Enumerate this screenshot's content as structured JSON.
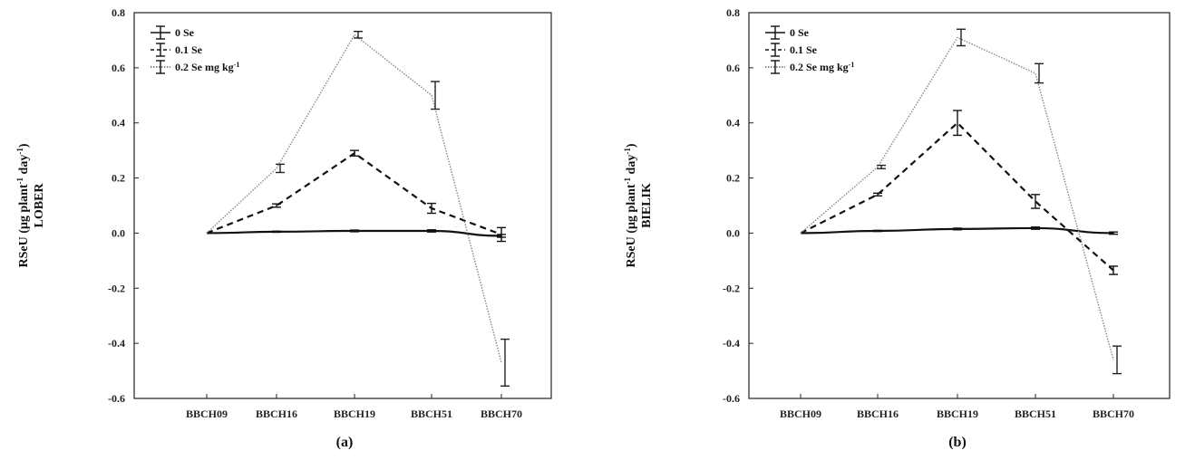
{
  "chart_data": [
    {
      "type": "line",
      "caption": "(a)",
      "ylabel_main": "RSeU (µg plant",
      "ylabel_sup1": "-1",
      "ylabel_mid": " day",
      "ylabel_sup2": "-1",
      "ylabel_end": ")",
      "ylabel_line2": "LOBER",
      "categories": [
        "BBCH09",
        "BBCH16",
        "BBCH19",
        "BBCH51",
        "BBCH70"
      ],
      "ylim": [
        -0.6,
        0.8
      ],
      "yticks": [
        "-0.6",
        "-0.4",
        "-0.2",
        "0.0",
        "0.2",
        "0.4",
        "0.6",
        "0.8"
      ],
      "legend": {
        "placement": "top-left",
        "entries": [
          "0 Se",
          "0.1 Se",
          "0.2 Se mg kg"
        ],
        "last_sup": "-1"
      },
      "series": [
        {
          "name": "0 Se",
          "style": "solid",
          "values": [
            0.0,
            0.005,
            0.008,
            0.008,
            -0.01
          ],
          "errors": [
            0.0,
            0.002,
            0.003,
            0.004,
            0.005
          ]
        },
        {
          "name": "0.1 Se",
          "style": "dashed",
          "values": [
            0.0,
            0.1,
            0.29,
            0.09,
            -0.005
          ],
          "errors": [
            0.0,
            0.006,
            0.01,
            0.018,
            0.025
          ]
        },
        {
          "name": "0.2 Se mg kg-1",
          "style": "dotted",
          "values": [
            0.0,
            0.235,
            0.72,
            0.5,
            -0.47
          ],
          "errors": [
            0.0,
            0.015,
            0.012,
            0.05,
            0.085
          ]
        }
      ]
    },
    {
      "type": "line",
      "caption": "(b)",
      "ylabel_main": "RSeU (µg plant",
      "ylabel_sup1": "-1",
      "ylabel_mid": " day",
      "ylabel_sup2": "-1",
      "ylabel_end": ")",
      "ylabel_line2": "BIELIK",
      "categories": [
        "BBCH09",
        "BBCH16",
        "BBCH19",
        "BBCH51",
        "BBCH70"
      ],
      "ylim": [
        -0.6,
        0.8
      ],
      "yticks": [
        "-0.6",
        "-0.4",
        "-0.2",
        "0.0",
        "0.2",
        "0.4",
        "0.6",
        "0.8"
      ],
      "legend": {
        "placement": "top-left",
        "entries": [
          "0 Se",
          "0.1 Se",
          "0.2 Se mg kg"
        ],
        "last_sup": "-1"
      },
      "series": [
        {
          "name": "0 Se",
          "style": "solid",
          "values": [
            0.0,
            0.008,
            0.015,
            0.018,
            0.0
          ],
          "errors": [
            0.0,
            0.002,
            0.003,
            0.004,
            0.004
          ]
        },
        {
          "name": "0.1 Se",
          "style": "dashed",
          "values": [
            0.0,
            0.14,
            0.4,
            0.115,
            -0.135
          ],
          "errors": [
            0.0,
            0.005,
            0.045,
            0.025,
            0.015
          ]
        },
        {
          "name": "0.2 Se mg kg-1",
          "style": "dotted",
          "values": [
            0.0,
            0.24,
            0.71,
            0.58,
            -0.46
          ],
          "errors": [
            0.0,
            0.006,
            0.03,
            0.035,
            0.05
          ]
        }
      ]
    }
  ]
}
